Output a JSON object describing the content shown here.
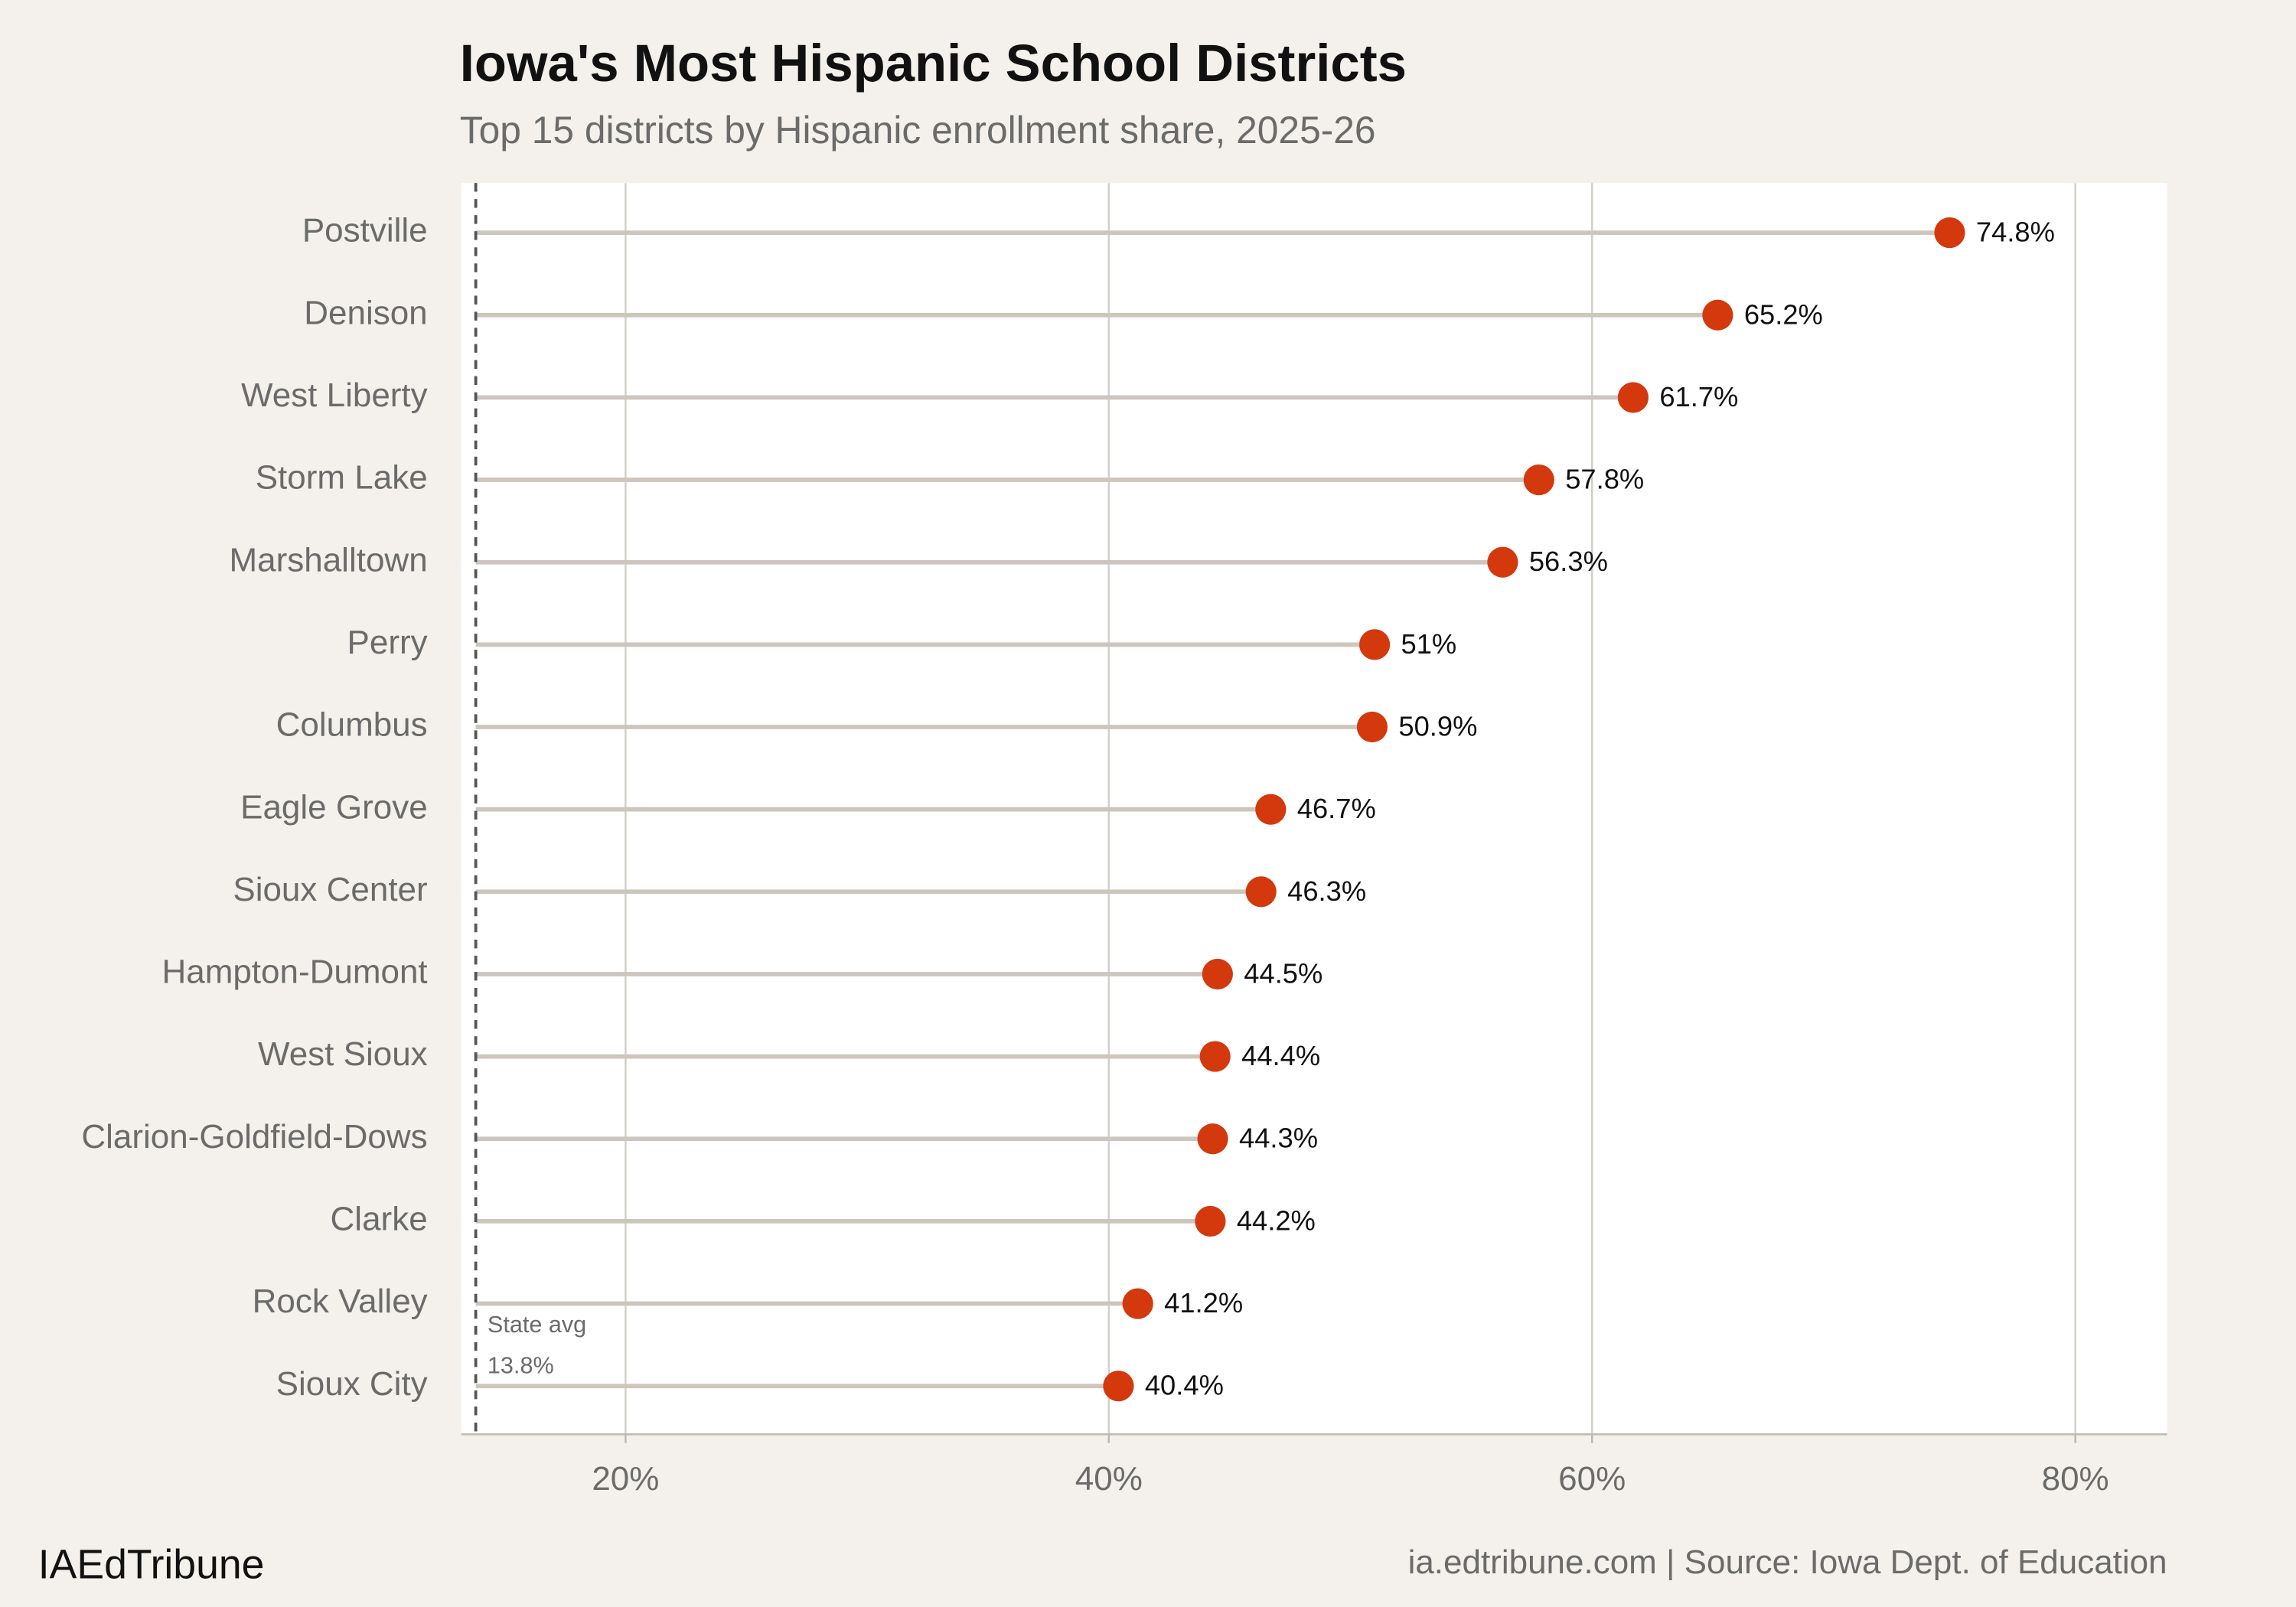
{
  "chart_data": {
    "type": "lollipop",
    "title": "Iowa's Most Hispanic School Districts",
    "subtitle": "Top 15 districts by Hispanic enrollment share, 2025-26",
    "categories": [
      "Postville",
      "Denison",
      "West Liberty",
      "Storm Lake",
      "Marshalltown",
      "Perry",
      "Columbus",
      "Eagle Grove",
      "Sioux Center",
      "Hampton-Dumont",
      "West Sioux",
      "Clarion-Goldfield-Dows",
      "Clarke",
      "Rock Valley",
      "Sioux City"
    ],
    "values": [
      74.8,
      65.2,
      61.7,
      57.8,
      56.3,
      51,
      50.9,
      46.7,
      46.3,
      44.5,
      44.4,
      44.3,
      44.2,
      41.2,
      40.4
    ],
    "value_labels": [
      "74.8%",
      "65.2%",
      "61.7%",
      "57.8%",
      "56.3%",
      "51%",
      "50.9%",
      "46.7%",
      "46.3%",
      "44.5%",
      "44.4%",
      "44.3%",
      "44.2%",
      "41.2%",
      "40.4%"
    ],
    "color": "#d4380d",
    "stem_color": "#cdc6bd",
    "xlim": [
      13.2,
      83.8
    ],
    "xticks": [
      {
        "value": 20,
        "label": "20%"
      },
      {
        "value": 40,
        "label": "40%"
      },
      {
        "value": 60,
        "label": "60%"
      },
      {
        "value": 80,
        "label": "80%"
      }
    ],
    "grid": true,
    "reference_line": {
      "value": 13.8,
      "label": "State avg",
      "value_label": "13.8%"
    },
    "brand": "IAEdTribune",
    "source": "ia.edtribune.com | Source: Iowa Dept. of Education"
  }
}
